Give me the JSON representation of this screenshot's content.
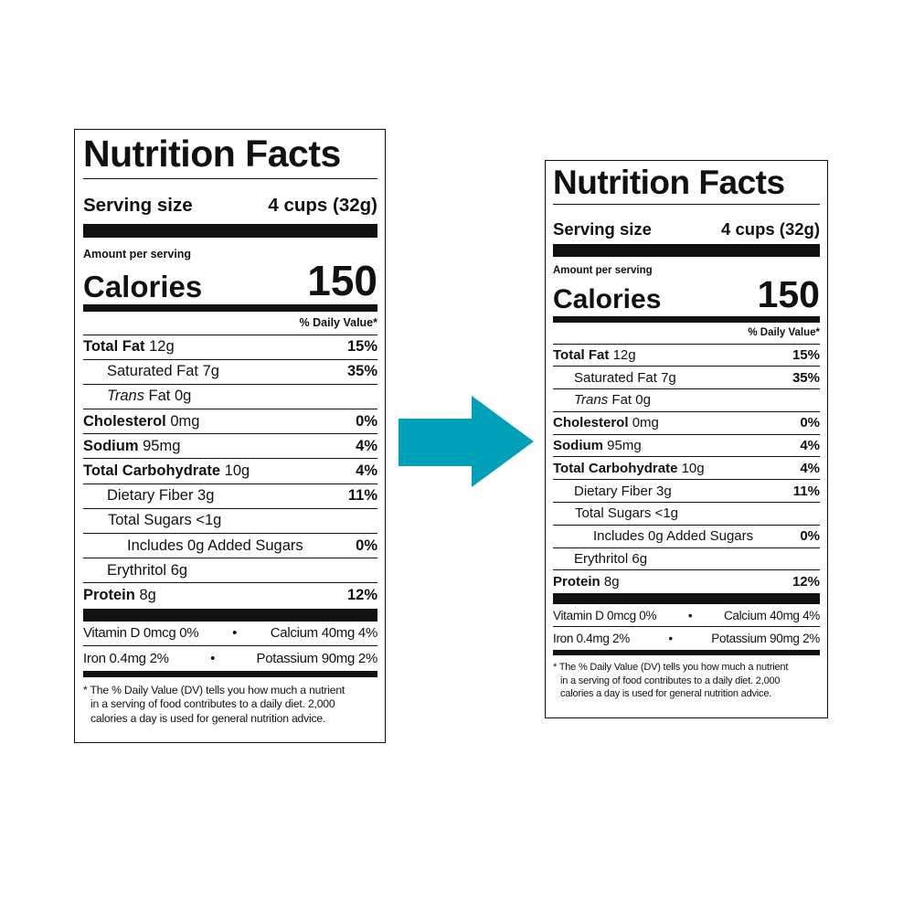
{
  "label": {
    "title": "Nutrition Facts",
    "serving_label": "Serving size",
    "serving_value": "4 cups (32g)",
    "amount_per_serving": "Amount per serving",
    "calories_label": "Calories",
    "calories_value": "150",
    "dv_header": "% Daily Value*",
    "nutrients": {
      "total_fat": {
        "name": "Total Fat",
        "amount": "12g",
        "dv": "15%"
      },
      "saturated_fat": {
        "name": "Saturated Fat",
        "amount": "7g",
        "dv": "35%"
      },
      "trans_fat": {
        "name": "Trans",
        "name_suffix": "Fat",
        "amount": "0g",
        "dv": ""
      },
      "cholesterol": {
        "name": "Cholesterol",
        "amount": "0mg",
        "dv": "0%"
      },
      "sodium": {
        "name": "Sodium",
        "amount": "95mg",
        "dv": "4%"
      },
      "total_carbohydrate": {
        "name": "Total Carbohydrate",
        "amount": "10g",
        "dv": "4%"
      },
      "dietary_fiber": {
        "name": "Dietary Fiber",
        "amount": "3g",
        "dv": "11%"
      },
      "total_sugars": {
        "name": "Total Sugars",
        "amount": "<1g",
        "dv": ""
      },
      "added_sugars": {
        "name": "Includes 0g Added Sugars",
        "dv": "0%"
      },
      "erythritol": {
        "name": "Erythritol",
        "amount": "6g",
        "dv": ""
      },
      "protein": {
        "name": "Protein",
        "amount": "8g",
        "dv": "12%"
      }
    },
    "vitamins": {
      "vitamin_d": "Vitamin D 0mcg 0%",
      "calcium": "Calcium 40mg 4%",
      "iron": "Iron 0.4mg 2%",
      "potassium": "Potassium 90mg 2%",
      "bullet": "•"
    },
    "footnote": {
      "line1": "* The % Daily Value (DV) tells you how much a nutrient",
      "line2": "in a serving of food contributes to a daily diet. 2,000",
      "line3": "calories a day is used for general nutrition advice."
    }
  },
  "arrow": {
    "color": "#00a0b8",
    "icon": "arrow-right-icon"
  }
}
